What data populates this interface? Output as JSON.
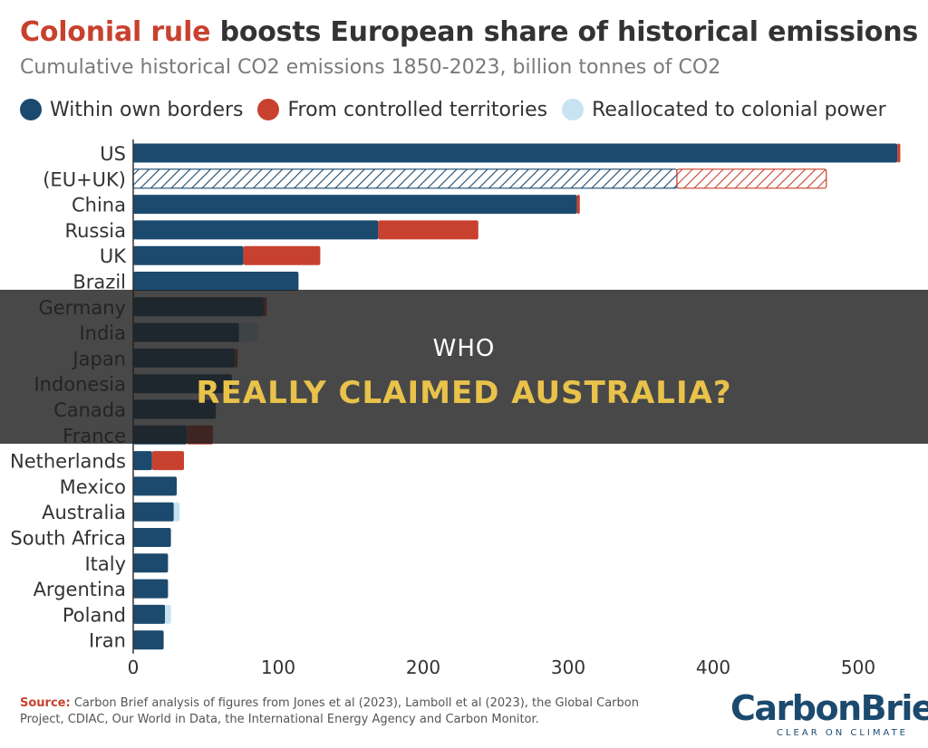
{
  "title_accent": "Colonial rule",
  "title_rest": " boosts European share of historical emissions",
  "subtitle": "Cumulative historical CO2 emissions 1850-2023, billion tonnes of CO2",
  "legend": [
    {
      "label": "Within own borders",
      "color": "#1b4a6e"
    },
    {
      "label": "From controlled territories",
      "color": "#c8412f"
    },
    {
      "label": "Reallocated to colonial power",
      "color": "#c7e3f2"
    }
  ],
  "chart_data": {
    "type": "bar",
    "orientation": "horizontal",
    "stacked": true,
    "categories": [
      "US",
      "(EU+UK)",
      "China",
      "Russia",
      "UK",
      "Brazil",
      "Germany",
      "India",
      "Japan",
      "Indonesia",
      "Canada",
      "France",
      "Netherlands",
      "Mexico",
      "Australia",
      "South Africa",
      "Italy",
      "Argentina",
      "Poland",
      "Iran"
    ],
    "series": [
      {
        "name": "Within own borders",
        "color": "#1b4a6e",
        "values": [
          527,
          375,
          306,
          169,
          76,
          114,
          90,
          73,
          70,
          68,
          57,
          37,
          13,
          30,
          28,
          26,
          24,
          24,
          22,
          21
        ]
      },
      {
        "name": "From controlled territories",
        "color": "#c8412f",
        "values": [
          2,
          103,
          2,
          69,
          53,
          0,
          2,
          0,
          2,
          0,
          0,
          18,
          22,
          0,
          0,
          0,
          0,
          0,
          0,
          0
        ]
      },
      {
        "name": "Reallocated to colonial power",
        "color": "#c7e3f2",
        "values": [
          0,
          0,
          0,
          0,
          0,
          0,
          0,
          13,
          0,
          0,
          0,
          0,
          0,
          0,
          4,
          0,
          0,
          0,
          4,
          0
        ]
      }
    ],
    "hatched_categories": [
      "(EU+UK)"
    ],
    "xlim": [
      0,
      550
    ],
    "xticks": [
      0,
      100,
      200,
      300,
      400,
      500
    ],
    "xlabel": "",
    "ylabel": ""
  },
  "banner": {
    "line1": "WHO",
    "line2": "REALLY CLAIMED AUSTRALIA?"
  },
  "source": {
    "label": "Source:",
    "text": " Carbon Brief analysis of figures from Jones et al (2023), Lamboll et al (2023), the Global Carbon Project, CDIAC, Our World in Data, the International Energy Agency and Carbon Monitor."
  },
  "logo": {
    "name": "CarbonBrief",
    "tagline": "CLEAR ON CLIMATE"
  }
}
